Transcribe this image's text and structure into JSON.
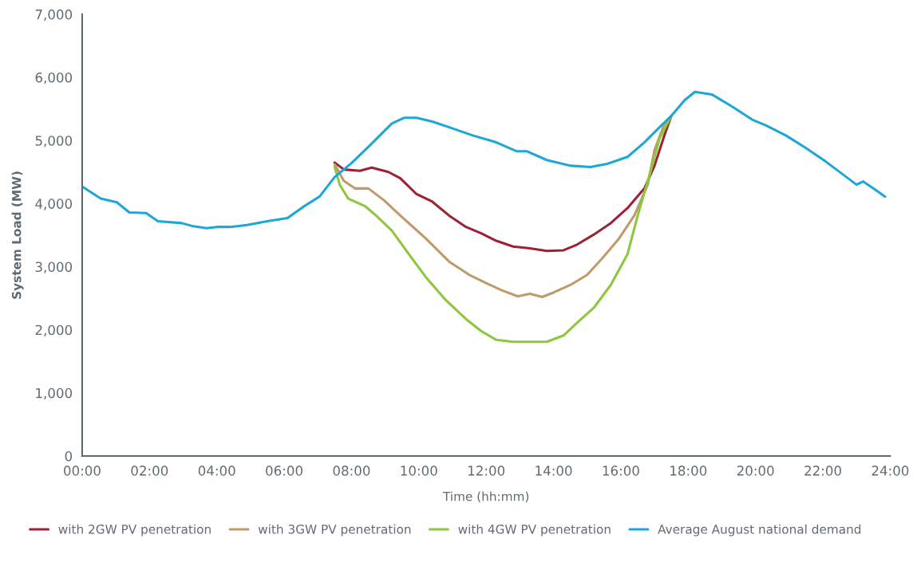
{
  "chart_data": {
    "type": "line",
    "xlabel": "Time (hh:mm)",
    "ylabel": "System Load (MW)",
    "xlim": [
      0,
      24
    ],
    "ylim": [
      0,
      7000
    ],
    "xticks": [
      {
        "value": 0,
        "label": "00:00"
      },
      {
        "value": 2,
        "label": "02:00"
      },
      {
        "value": 4,
        "label": "04:00"
      },
      {
        "value": 6,
        "label": "06:00"
      },
      {
        "value": 8,
        "label": "08:00"
      },
      {
        "value": 10,
        "label": "10:00"
      },
      {
        "value": 12,
        "label": "12:00"
      },
      {
        "value": 14,
        "label": "14:00"
      },
      {
        "value": 16,
        "label": "16:00"
      },
      {
        "value": 18,
        "label": "18:00"
      },
      {
        "value": 20,
        "label": "20:00"
      },
      {
        "value": 22,
        "label": "22:00"
      },
      {
        "value": 24,
        "label": "24:00"
      }
    ],
    "yticks": [
      0,
      {
        "value": 1000,
        "label": "1,000"
      },
      {
        "value": 2000,
        "label": "2,000"
      },
      {
        "value": 3000,
        "label": "3,000"
      },
      {
        "value": 4000,
        "label": "4,000"
      },
      {
        "value": 5000,
        "label": "5,000"
      },
      {
        "value": 6000,
        "label": "6,000"
      },
      {
        "value": 7000,
        "label": "7,000"
      }
    ],
    "grid": false,
    "legend": "bottom",
    "marker": "none",
    "line_style": "solid",
    "series": [
      {
        "name": "with 2GW PV penetration",
        "color": "#9b2335",
        "x": [
          7.5,
          7.77,
          8.25,
          8.6,
          9.1,
          9.45,
          9.93,
          10.4,
          10.9,
          11.4,
          11.85,
          12.3,
          12.8,
          13.3,
          13.8,
          14.3,
          14.7,
          15.2,
          15.7,
          16.2,
          16.7,
          17.0,
          17.3,
          17.5
        ],
        "values": [
          4650,
          4540,
          4520,
          4570,
          4500,
          4400,
          4150,
          4030,
          3810,
          3630,
          3530,
          3410,
          3320,
          3290,
          3250,
          3260,
          3350,
          3510,
          3690,
          3930,
          4240,
          4600,
          5090,
          5390
        ]
      },
      {
        "name": "with 3GW PV penetration",
        "color": "#c09a6b",
        "x": [
          7.5,
          7.77,
          8.1,
          8.5,
          8.97,
          9.45,
          10.2,
          10.9,
          11.5,
          12.0,
          12.45,
          12.94,
          13.3,
          13.66,
          14.0,
          14.5,
          15.0,
          15.46,
          15.95,
          16.4,
          16.8,
          17.0,
          17.3,
          17.5
        ],
        "values": [
          4620,
          4360,
          4240,
          4240,
          4050,
          3810,
          3450,
          3080,
          2870,
          2740,
          2630,
          2530,
          2570,
          2520,
          2590,
          2710,
          2870,
          3140,
          3450,
          3810,
          4300,
          4850,
          5270,
          5390
        ]
      },
      {
        "name": "with 4GW PV penetration",
        "color": "#8dc63f",
        "x": [
          7.5,
          7.65,
          7.9,
          8.4,
          8.73,
          9.2,
          9.7,
          10.2,
          10.8,
          11.4,
          11.85,
          12.3,
          12.8,
          13.3,
          13.8,
          14.3,
          14.7,
          15.2,
          15.7,
          16.2,
          16.5,
          16.9,
          17.15,
          17.5
        ],
        "values": [
          4580,
          4300,
          4080,
          3960,
          3810,
          3570,
          3200,
          2840,
          2470,
          2170,
          1980,
          1840,
          1810,
          1810,
          1810,
          1910,
          2110,
          2350,
          2710,
          3200,
          3810,
          4540,
          5030,
          5390
        ]
      },
      {
        "name": "Average August national demand",
        "color": "#1ea7d6",
        "x": [
          0,
          0.55,
          1.03,
          1.4,
          1.9,
          2.25,
          2.96,
          3.3,
          3.7,
          4.0,
          4.4,
          4.9,
          5.5,
          6.1,
          6.6,
          7.05,
          7.5,
          8.0,
          8.6,
          9.2,
          9.57,
          9.93,
          10.4,
          10.9,
          11.6,
          12.3,
          12.9,
          13.2,
          13.8,
          14.5,
          15.1,
          15.6,
          16.2,
          16.7,
          17.15,
          17.5,
          17.9,
          18.2,
          18.7,
          19.3,
          19.9,
          20.3,
          20.9,
          21.5,
          22.1,
          22.7,
          23.0,
          23.2,
          23.5,
          23.85
        ],
        "values": [
          4270,
          4080,
          4020,
          3860,
          3850,
          3720,
          3690,
          3640,
          3610,
          3630,
          3630,
          3660,
          3720,
          3770,
          3960,
          4110,
          4420,
          4640,
          4950,
          5270,
          5360,
          5360,
          5300,
          5210,
          5080,
          4970,
          4830,
          4830,
          4690,
          4600,
          4580,
          4630,
          4740,
          4970,
          5210,
          5390,
          5640,
          5770,
          5730,
          5540,
          5330,
          5240,
          5080,
          4880,
          4660,
          4420,
          4300,
          4350,
          4240,
          4110
        ]
      }
    ]
  }
}
